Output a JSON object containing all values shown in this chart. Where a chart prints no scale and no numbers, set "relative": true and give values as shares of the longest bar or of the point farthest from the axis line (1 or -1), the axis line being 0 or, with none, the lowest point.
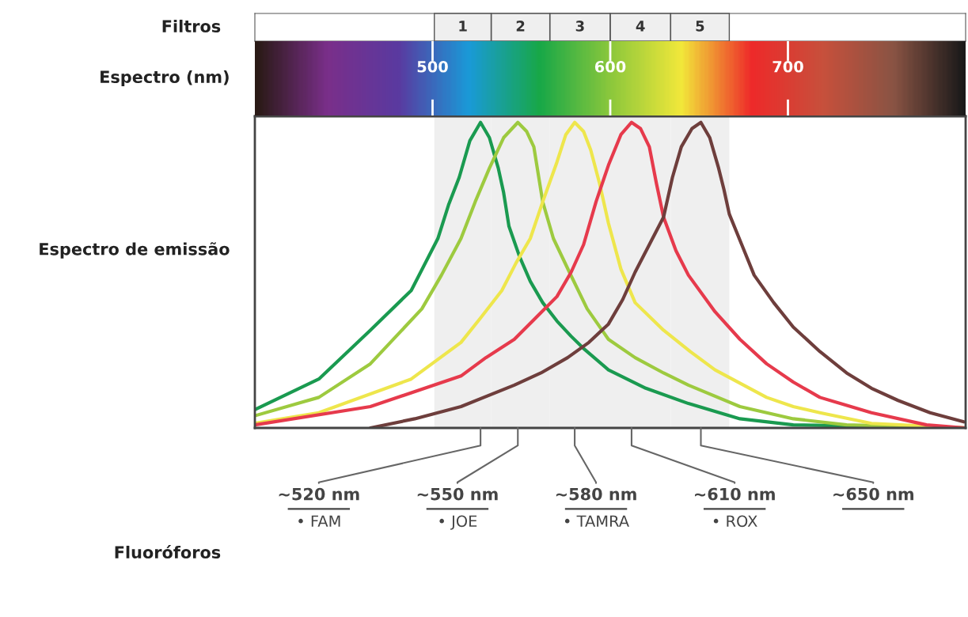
{
  "chart_data": {
    "type": "line",
    "relative": true,
    "xlabel": "Espectro (nm)",
    "ylabel": "Espectro de emissão",
    "xlim": [
      400,
      800
    ],
    "xticks": [
      500,
      600,
      700
    ],
    "series": [
      {
        "color": "#1a9a50",
        "x": [
          400,
          436,
          465,
          488,
          503,
          509,
          515,
          521,
          527,
          532,
          537,
          540,
          543,
          549,
          555,
          562,
          570,
          578,
          585,
          599,
          620,
          644,
          673,
          703,
          800
        ],
        "values": [
          0.06,
          0.16,
          0.32,
          0.45,
          0.62,
          0.73,
          0.82,
          0.94,
          1,
          0.95,
          0.85,
          0.77,
          0.66,
          0.56,
          0.48,
          0.41,
          0.35,
          0.3,
          0.26,
          0.19,
          0.13,
          0.08,
          0.03,
          0.01,
          0
        ]
      },
      {
        "color": "#9dca3f",
        "x": [
          400,
          436,
          465,
          494,
          505,
          516,
          524,
          532,
          540,
          548,
          553,
          557,
          562,
          568,
          577,
          587,
          599,
          614,
          630,
          644,
          673,
          703,
          733,
          800
        ],
        "values": [
          0.04,
          0.1,
          0.21,
          0.39,
          0.5,
          0.62,
          0.74,
          0.85,
          0.95,
          1,
          0.97,
          0.92,
          0.74,
          0.62,
          0.51,
          0.39,
          0.29,
          0.23,
          0.18,
          0.14,
          0.07,
          0.03,
          0.01,
          0
        ]
      },
      {
        "color": "#eee64c",
        "x": [
          400,
          436,
          488,
          516,
          527,
          539,
          547,
          555,
          562,
          570,
          575,
          580,
          585,
          589,
          594,
          599,
          606,
          614,
          630,
          645,
          659,
          688,
          703,
          718,
          747,
          800
        ],
        "values": [
          0.015,
          0.05,
          0.16,
          0.28,
          0.36,
          0.45,
          0.54,
          0.62,
          0.74,
          0.87,
          0.96,
          1,
          0.97,
          0.91,
          0.8,
          0.67,
          0.52,
          0.41,
          0.32,
          0.25,
          0.19,
          0.1,
          0.07,
          0.05,
          0.015,
          0
        ]
      },
      {
        "color": "#e63a4c",
        "x": [
          400,
          465,
          516,
          530,
          546,
          558,
          570,
          578,
          585,
          592,
          599,
          606,
          612,
          617,
          622,
          626,
          630,
          637,
          644,
          659,
          673,
          688,
          703,
          718,
          747,
          778,
          800
        ],
        "values": [
          0.01,
          0.07,
          0.17,
          0.23,
          0.29,
          0.36,
          0.43,
          0.51,
          0.6,
          0.74,
          0.86,
          0.96,
          1,
          0.98,
          0.92,
          0.8,
          0.69,
          0.58,
          0.5,
          0.38,
          0.29,
          0.21,
          0.15,
          0.1,
          0.05,
          0.01,
          0
        ]
      },
      {
        "color": "#6e3e3c",
        "x": [
          465,
          490,
          516,
          546,
          561,
          576,
          588,
          599,
          607,
          614,
          622,
          630,
          635,
          640,
          646,
          651,
          656,
          661,
          664,
          667,
          674,
          681,
          692,
          703,
          718,
          733,
          747,
          762,
          780,
          799
        ],
        "values": [
          0,
          0.03,
          0.07,
          0.14,
          0.18,
          0.23,
          0.28,
          0.34,
          0.42,
          0.51,
          0.6,
          0.69,
          0.82,
          0.92,
          0.98,
          1,
          0.95,
          0.85,
          0.78,
          0.7,
          0.6,
          0.5,
          0.41,
          0.33,
          0.25,
          0.18,
          0.13,
          0.09,
          0.05,
          0.02
        ]
      }
    ],
    "bands": [
      {
        "axis": "x",
        "from": 501,
        "to": 533,
        "label": "1",
        "color": "#efefef"
      },
      {
        "axis": "x",
        "from": 533,
        "to": 566,
        "label": "2",
        "color": "#efefef"
      },
      {
        "axis": "x",
        "from": 566,
        "to": 600,
        "label": "3",
        "color": "#efefef"
      },
      {
        "axis": "x",
        "from": 600,
        "to": 634,
        "label": "4",
        "color": "#efefef"
      },
      {
        "axis": "x",
        "from": 634,
        "to": 667,
        "label": "5",
        "color": "#efefef"
      }
    ],
    "annotations": [
      "Filtros",
      "Fluoróforos",
      {
        "text": "~520 nm\n• FAM",
        "x": 527,
        "y": 0
      },
      {
        "text": "~550 nm\n• JOE",
        "x": 548,
        "y": 0
      },
      {
        "text": "~580 nm\n• TAMRA",
        "x": 580,
        "y": 0
      },
      {
        "text": "~610 nm\n• ROX",
        "x": 612,
        "y": 0
      },
      {
        "text": "~650 nm",
        "x": 651,
        "y": 0
      }
    ],
    "tick_labels": "x"
  }
}
